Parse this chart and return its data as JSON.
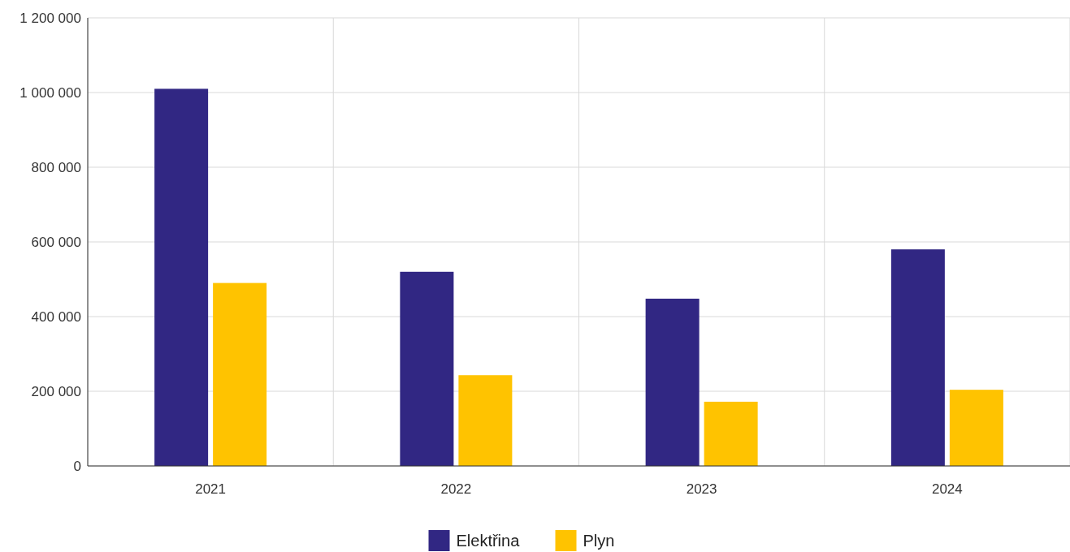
{
  "chart_data": {
    "type": "bar",
    "categories": [
      "2021",
      "2022",
      "2023",
      "2024"
    ],
    "series": [
      {
        "name": "Elektřina",
        "color": "#312783",
        "values": [
          1010000,
          520000,
          448000,
          580000
        ]
      },
      {
        "name": "Plyn",
        "color": "#ffc300",
        "values": [
          490000,
          243000,
          172000,
          204000
        ]
      }
    ],
    "ylim": [
      0,
      1200000
    ],
    "yticks": [
      {
        "value": 0,
        "label": "0"
      },
      {
        "value": 200000,
        "label": "200 000"
      },
      {
        "value": 400000,
        "label": "400 000"
      },
      {
        "value": 600000,
        "label": "600 000"
      },
      {
        "value": 800000,
        "label": "800 000"
      },
      {
        "value": 1000000,
        "label": "1 000 000"
      },
      {
        "value": 1200000,
        "label": "1 200 000"
      }
    ],
    "grid": true,
    "legend": "bottom"
  }
}
